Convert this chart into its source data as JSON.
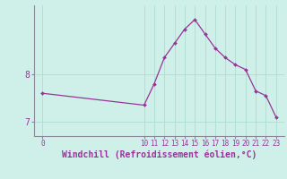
{
  "xlabel": "Windchill (Refroidissement éolien,°C)",
  "background_color": "#cef0e8",
  "line_color": "#993399",
  "marker_color": "#993399",
  "grid_color": "#aad8ce",
  "axis_color": "#888899",
  "text_color": "#993399",
  "x_data": [
    0,
    10,
    11,
    12,
    13,
    14,
    15,
    16,
    17,
    18,
    19,
    20,
    21,
    22,
    23
  ],
  "y_data": [
    7.6,
    7.35,
    7.8,
    8.35,
    8.65,
    8.95,
    9.15,
    8.85,
    8.55,
    8.35,
    8.2,
    8.1,
    7.65,
    7.55,
    7.1
  ],
  "yticks": [
    7,
    8
  ],
  "ylim": [
    6.7,
    9.45
  ],
  "xlim": [
    -0.8,
    23.8
  ],
  "xtick_positions": [
    0,
    10,
    11,
    12,
    13,
    14,
    15,
    16,
    17,
    18,
    19,
    20,
    21,
    22,
    23
  ],
  "xtick_labels": [
    "0",
    "10",
    "11",
    "12",
    "13",
    "14",
    "15",
    "16",
    "17",
    "18",
    "19",
    "20",
    "21",
    "22",
    "23"
  ]
}
